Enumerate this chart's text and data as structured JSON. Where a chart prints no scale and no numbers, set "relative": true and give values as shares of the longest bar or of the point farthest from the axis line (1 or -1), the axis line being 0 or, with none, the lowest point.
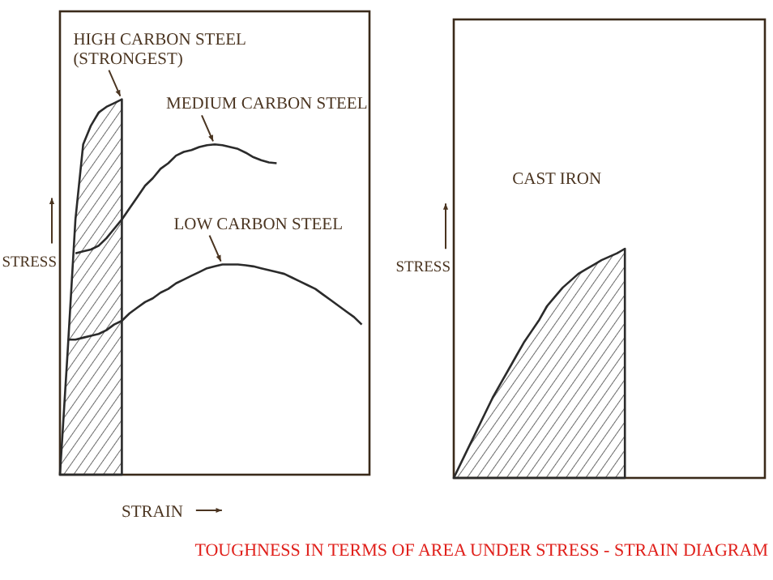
{
  "chart_data": [
    {
      "type": "line",
      "relative": true,
      "ylabel": "STRESS",
      "xlabel": "STRAIN",
      "annotations": [
        "TOUGHNESS IN TERMS OF AREA UNDER STRESS - STRAIN DIAGRAM"
      ],
      "categories": [
        null,
        null,
        null,
        null,
        null,
        null,
        null,
        null,
        null,
        null,
        null,
        null,
        null,
        null,
        null,
        null,
        null,
        null,
        null,
        null,
        null,
        null,
        null,
        null,
        null,
        null,
        null,
        null,
        null,
        null,
        null,
        null,
        null,
        null,
        null,
        null,
        null,
        null,
        null,
        null,
        null
      ],
      "series": [
        {
          "name": "HIGH CARBON STEEL (STRONGEST)",
          "type": "area",
          "color": "#2b2b2b",
          "values": [
            0,
            0.33,
            0.68,
            0.88,
            0.93,
            0.965,
            0.98,
            0.99,
            1.0,
            null,
            null,
            null,
            null,
            null,
            null,
            null,
            null,
            null,
            null,
            null,
            null,
            null,
            null,
            null,
            null,
            null,
            null,
            null,
            null,
            null,
            null,
            null,
            null,
            null,
            null,
            null,
            null,
            null,
            null,
            null,
            null
          ]
        },
        {
          "name": "MEDIUM CARBON STEEL",
          "type": "line",
          "color": "#2b2b2b",
          "values": [
            null,
            null,
            0.59,
            0.595,
            0.6,
            0.61,
            0.63,
            0.655,
            0.68,
            0.71,
            0.74,
            0.77,
            0.79,
            0.815,
            0.83,
            0.85,
            0.86,
            0.865,
            0.873,
            0.878,
            0.88,
            0.878,
            0.873,
            0.868,
            0.858,
            0.846,
            0.838,
            0.832,
            0.83,
            null,
            null,
            null,
            null,
            null,
            null,
            null,
            null,
            null,
            null,
            null,
            null
          ]
        },
        {
          "name": "LOW CARBON STEEL",
          "type": "line",
          "color": "#2b2b2b",
          "values": [
            null,
            0.36,
            0.36,
            0.365,
            0.37,
            0.375,
            0.385,
            0.4,
            0.41,
            0.43,
            0.445,
            0.46,
            0.47,
            0.485,
            0.495,
            0.51,
            0.52,
            0.53,
            0.54,
            0.55,
            0.555,
            0.56,
            0.56,
            0.56,
            0.558,
            0.555,
            0.55,
            0.545,
            0.54,
            0.535,
            0.525,
            0.515,
            0.505,
            0.495,
            0.48,
            0.465,
            0.45,
            0.435,
            0.42,
            0.4,
            null
          ]
        }
      ]
    },
    {
      "type": "line",
      "relative": true,
      "ylabel": "STRESS",
      "categories": [
        null,
        null,
        null,
        null,
        null,
        null,
        null,
        null,
        null,
        null,
        null,
        null,
        null,
        null,
        null,
        null,
        null,
        null,
        null,
        null,
        null,
        null,
        null,
        null,
        null,
        null,
        null,
        null,
        null,
        null,
        null,
        null,
        null,
        null,
        null,
        null,
        null,
        null,
        null,
        null,
        null
      ],
      "series": [
        {
          "name": "CAST IRON",
          "type": "area",
          "color": "#2b2b2b",
          "values": [
            0,
            0.07,
            0.14,
            0.21,
            0.28,
            0.35,
            0.41,
            0.47,
            0.53,
            0.59,
            0.64,
            0.69,
            0.75,
            0.79,
            0.83,
            0.86,
            0.89,
            0.91,
            0.93,
            0.95,
            0.965,
            0.98,
            1.0,
            null,
            null,
            null,
            null,
            null,
            null,
            null,
            null,
            null,
            null,
            null,
            null,
            null,
            null,
            null,
            null,
            null,
            null
          ]
        }
      ]
    }
  ]
}
